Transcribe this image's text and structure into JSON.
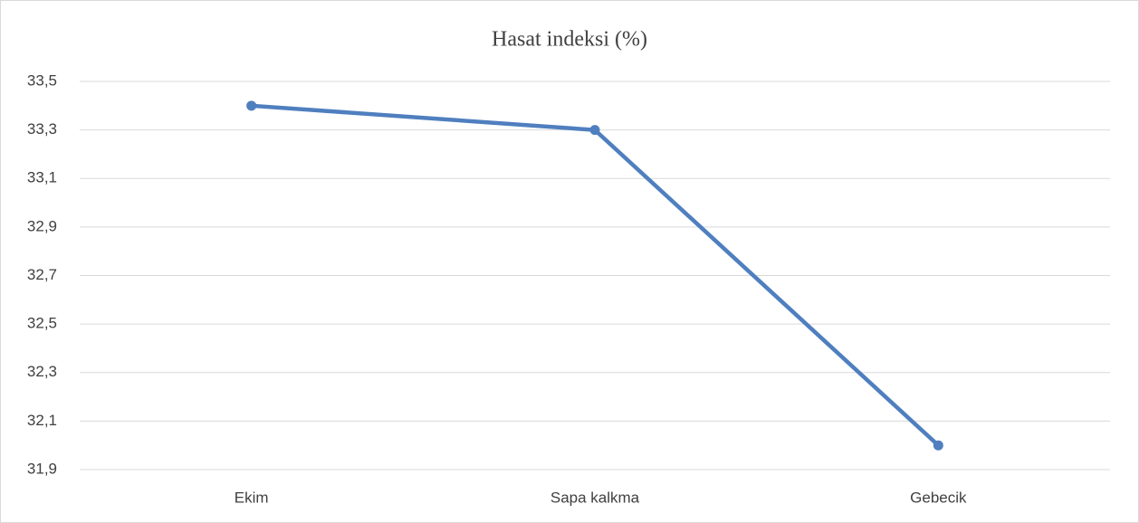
{
  "chart_data": {
    "type": "line",
    "title": "Hasat indeksi (%)",
    "categories": [
      "Ekim",
      "Sapa kalkma",
      "Gebecik"
    ],
    "values": [
      33.4,
      33.3,
      32.0
    ],
    "color": "#4f7fbf",
    "ylim": [
      31.9,
      33.5
    ],
    "yticks": [
      {
        "value": 31.9,
        "label": "31,9"
      },
      {
        "value": 32.1,
        "label": "32,1"
      },
      {
        "value": 32.3,
        "label": "32,3"
      },
      {
        "value": 32.5,
        "label": "32,5"
      },
      {
        "value": 32.7,
        "label": "32,7"
      },
      {
        "value": 32.9,
        "label": "32,9"
      },
      {
        "value": 33.1,
        "label": "33,1"
      },
      {
        "value": 33.3,
        "label": "33,3"
      },
      {
        "value": 33.5,
        "label": "33,5"
      }
    ],
    "grid": true
  }
}
